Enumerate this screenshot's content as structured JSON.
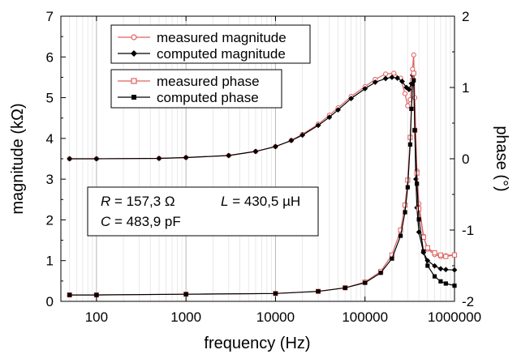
{
  "chart_data": {
    "type": "line",
    "xscale": "log",
    "xlim": [
      40,
      1000000
    ],
    "xlabel": "frequency (Hz)",
    "x_ticks": [
      "100",
      "1000",
      "10000",
      "100000",
      "1000000"
    ],
    "y_left": {
      "label": "magnitude (kΩ)",
      "lim": [
        0,
        7
      ],
      "ticks": [
        "0",
        "1",
        "2",
        "3",
        "4",
        "5",
        "6",
        "7"
      ]
    },
    "y_right": {
      "label": "phase (°)",
      "lim": [
        -2,
        2
      ],
      "ticks": [
        "-2",
        "-1",
        "0",
        "1",
        "2"
      ]
    },
    "grid": "vertical log gridlines",
    "legend": {
      "placement": "top-left",
      "group_magnitude": [
        "measured magnitude",
        "computed magnitude"
      ],
      "group_phase": [
        "measured phase",
        "computed phase"
      ]
    },
    "annotation": {
      "R_sym": "R",
      "R_val": " = 157,3 Ω",
      "L_sym": "L",
      "L_val": " = 430,5 µH",
      "C_sym": "C",
      "C_val": " = 483,9 pF"
    },
    "series": [
      {
        "name": "measured magnitude",
        "axis": "left",
        "color": "#e06060",
        "marker": "open-circle",
        "x": [
          50,
          100,
          500,
          1000,
          3000,
          6000,
          10000,
          15000,
          20000,
          30000,
          40000,
          50000,
          70000,
          100000,
          130000,
          170000,
          210000,
          250000,
          280000,
          300000,
          320000,
          340000,
          350000,
          360000,
          380000,
          400000,
          450000,
          500000,
          600000,
          700000,
          800000,
          1000000
        ],
        "y": [
          3.5,
          3.5,
          3.51,
          3.53,
          3.58,
          3.68,
          3.8,
          3.95,
          4.1,
          4.35,
          4.57,
          4.75,
          5.03,
          5.27,
          5.45,
          5.58,
          5.6,
          5.48,
          5.1,
          4.8,
          4.95,
          5.7,
          6.05,
          5.0,
          3.2,
          2.4,
          1.6,
          1.28,
          1.15,
          1.1,
          1.12,
          1.15
        ]
      },
      {
        "name": "computed magnitude",
        "axis": "left",
        "color": "#000000",
        "marker": "filled-diamond",
        "x": [
          50,
          100,
          500,
          1000,
          3000,
          6000,
          10000,
          15000,
          20000,
          30000,
          40000,
          50000,
          70000,
          100000,
          130000,
          170000,
          200000,
          230000,
          260000,
          290000,
          310000,
          330000,
          340000,
          350000,
          360000,
          370000,
          380000,
          400000,
          450000,
          500000,
          600000,
          700000,
          800000,
          1000000
        ],
        "y": [
          3.5,
          3.5,
          3.51,
          3.53,
          3.58,
          3.68,
          3.8,
          3.95,
          4.08,
          4.32,
          4.52,
          4.7,
          4.98,
          5.22,
          5.38,
          5.47,
          5.5,
          5.48,
          5.4,
          5.25,
          5.2,
          5.35,
          5.55,
          5.6,
          4.2,
          3.0,
          2.3,
          1.7,
          1.2,
          1.0,
          0.87,
          0.8,
          0.78,
          0.77
        ]
      },
      {
        "name": "measured phase",
        "axis": "right",
        "color": "#e06060",
        "marker": "open-square",
        "x": [
          50,
          100,
          1000,
          10000,
          30000,
          60000,
          100000,
          150000,
          200000,
          250000,
          280000,
          300000,
          320000,
          340000,
          350000,
          360000,
          380000,
          400000,
          450000,
          500000,
          600000,
          700000,
          800000,
          1000000
        ],
        "y": [
          -1.91,
          -1.91,
          -1.9,
          -1.89,
          -1.86,
          -1.81,
          -1.73,
          -1.58,
          -1.35,
          -1.0,
          -0.65,
          -0.3,
          0.3,
          1.1,
          1.2,
          0.4,
          -0.2,
          -0.7,
          -1.1,
          -1.25,
          -1.32,
          -1.35,
          -1.37,
          -1.35
        ]
      },
      {
        "name": "computed phase",
        "axis": "right",
        "color": "#000000",
        "marker": "filled-square",
        "x": [
          50,
          100,
          1000,
          10000,
          30000,
          60000,
          100000,
          150000,
          200000,
          250000,
          280000,
          300000,
          320000,
          330000,
          340000,
          350000,
          360000,
          380000,
          400000,
          450000,
          500000,
          600000,
          700000,
          800000,
          1000000
        ],
        "y": [
          -1.91,
          -1.91,
          -1.9,
          -1.89,
          -1.86,
          -1.81,
          -1.74,
          -1.6,
          -1.4,
          -1.08,
          -0.75,
          -0.4,
          0.2,
          0.7,
          1.05,
          1.1,
          0.4,
          -0.35,
          -0.85,
          -1.3,
          -1.5,
          -1.65,
          -1.72,
          -1.75,
          -1.78
        ]
      }
    ]
  }
}
